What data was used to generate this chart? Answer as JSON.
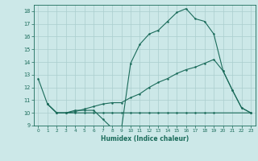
{
  "line1_x": [
    0,
    1,
    2,
    3,
    4,
    5,
    6,
    7,
    8,
    9,
    10,
    11,
    12,
    13,
    14,
    15,
    16,
    17,
    18,
    19,
    20,
    21,
    22,
    23
  ],
  "line1_y": [
    12.7,
    10.7,
    10.0,
    10.0,
    10.2,
    10.2,
    10.2,
    9.5,
    8.8,
    8.7,
    13.9,
    15.4,
    16.2,
    16.5,
    17.2,
    17.9,
    18.2,
    17.4,
    17.2,
    16.2,
    13.3,
    11.8,
    10.4,
    10.0
  ],
  "line2_x": [
    1,
    2,
    3,
    4,
    5,
    6,
    7,
    8,
    9,
    10,
    11,
    12,
    13,
    14,
    15,
    16,
    17,
    18,
    19,
    20,
    21,
    22,
    23
  ],
  "line2_y": [
    10.7,
    10.0,
    10.0,
    10.1,
    10.3,
    10.5,
    10.7,
    10.8,
    10.8,
    11.2,
    11.5,
    12.0,
    12.4,
    12.7,
    13.1,
    13.4,
    13.6,
    13.9,
    14.2,
    13.3,
    11.8,
    10.4,
    10.0
  ],
  "line3_x": [
    1,
    2,
    3,
    4,
    5,
    6,
    7,
    8,
    9,
    10,
    11,
    12,
    13,
    14,
    15,
    16,
    17,
    18,
    19,
    23
  ],
  "line3_y": [
    10.7,
    10.0,
    10.0,
    10.0,
    10.0,
    10.0,
    10.0,
    10.0,
    10.0,
    10.0,
    10.0,
    10.0,
    10.0,
    10.0,
    10.0,
    10.0,
    10.0,
    10.0,
    10.0,
    10.0
  ],
  "color": "#1a6b5a",
  "bg_color": "#cce8e8",
  "grid_color": "#aacece",
  "xlim": [
    -0.5,
    23.5
  ],
  "ylim": [
    9,
    18.5
  ],
  "yticks": [
    9,
    10,
    11,
    12,
    13,
    14,
    15,
    16,
    17,
    18
  ],
  "xticks": [
    0,
    1,
    2,
    3,
    4,
    5,
    6,
    7,
    8,
    9,
    10,
    11,
    12,
    13,
    14,
    15,
    16,
    17,
    18,
    19,
    20,
    21,
    22,
    23
  ],
  "xlabel": "Humidex (Indice chaleur)",
  "markersize": 1.8,
  "linewidth": 0.8
}
